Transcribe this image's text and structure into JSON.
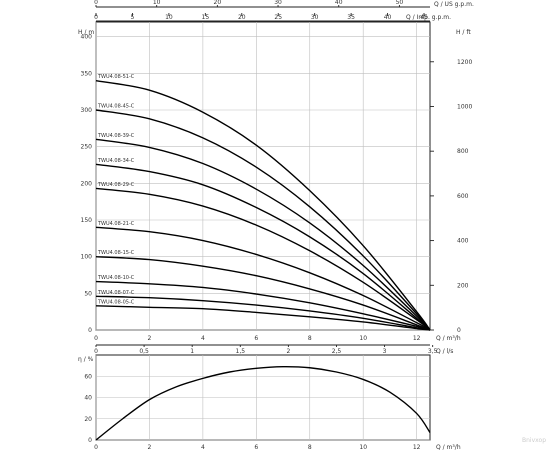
{
  "chart_data": [
    {
      "type": "line",
      "title": "",
      "ylabel_left": "H / m",
      "ylabel_right": "H / ft",
      "xlabel_bottom": "Q / m³/h",
      "xlabel_top_1": "Q / US g.p.m.",
      "xlabel_top_2": "Q / Imp. g.p.m.",
      "xlim": [
        0,
        12.5
      ],
      "ylim": [
        0,
        420
      ],
      "grid": true,
      "x_ticks": [
        "0",
        "2",
        "4",
        "6",
        "8",
        "10",
        "12"
      ],
      "y_ticks": [
        "0",
        "50",
        "100",
        "150",
        "200",
        "250",
        "300",
        "350",
        "400"
      ],
      "y_right_ticks": [
        "0",
        "200",
        "400",
        "600",
        "800",
        "1000",
        "1200"
      ],
      "top_us_ticks": [
        "0",
        "10",
        "20",
        "30",
        "40",
        "50"
      ],
      "top_imp_ticks": [
        "0",
        "5",
        "10",
        "15",
        "20",
        "25",
        "30",
        "35",
        "40",
        "45",
        "50"
      ],
      "series": [
        {
          "name": "TWU4.08-51-C",
          "x": [
            0,
            2,
            4,
            6,
            8,
            10,
            12,
            12.5
          ],
          "y": [
            340,
            327,
            297,
            252,
            190,
            115,
            25,
            0
          ]
        },
        {
          "name": "TWU4.08-45-C",
          "x": [
            0,
            2,
            4,
            6,
            8,
            10,
            12,
            12.5
          ],
          "y": [
            300,
            288,
            262,
            222,
            168,
            101,
            22,
            0
          ]
        },
        {
          "name": "TWU4.08-39-C",
          "x": [
            0,
            2,
            4,
            6,
            8,
            10,
            12,
            12.5
          ],
          "y": [
            260,
            249,
            227,
            192,
            146,
            88,
            19,
            0
          ]
        },
        {
          "name": "TWU4.08-34-C",
          "x": [
            0,
            2,
            4,
            6,
            8,
            10,
            12,
            12.5
          ],
          "y": [
            226,
            216,
            198,
            167,
            127,
            77,
            16,
            0
          ]
        },
        {
          "name": "TWU4.08-29-C",
          "x": [
            0,
            2,
            4,
            6,
            8,
            10,
            12,
            12.5
          ],
          "y": [
            193,
            185,
            169,
            143,
            108,
            65,
            14,
            0
          ]
        },
        {
          "name": "TWU4.08-21-C",
          "x": [
            0,
            2,
            4,
            6,
            8,
            10,
            12,
            12.5
          ],
          "y": [
            140,
            134,
            122,
            103,
            78,
            47,
            10,
            0
          ]
        },
        {
          "name": "TWU4.08-15-C",
          "x": [
            0,
            2,
            4,
            6,
            8,
            10,
            12,
            12.5
          ],
          "y": [
            100,
            96,
            87,
            74,
            56,
            34,
            7,
            0
          ]
        },
        {
          "name": "TWU4.08-10-C",
          "x": [
            0,
            2,
            4,
            6,
            8,
            10,
            12,
            12.5
          ],
          "y": [
            66,
            63,
            58,
            49,
            37,
            22,
            5,
            0
          ]
        },
        {
          "name": "TWU4.08-07-C",
          "x": [
            0,
            2,
            4,
            6,
            8,
            10,
            12,
            12.5
          ],
          "y": [
            46,
            44,
            40,
            34,
            26,
            16,
            3,
            0
          ]
        },
        {
          "name": "TWU4.08-05-C",
          "x": [
            0,
            2,
            4,
            6,
            8,
            10,
            12,
            12.5
          ],
          "y": [
            33,
            31,
            29,
            24,
            18,
            11,
            2,
            0
          ]
        }
      ]
    },
    {
      "type": "line",
      "title": "",
      "ylabel": "η / %",
      "xlabel_bottom": "Q / m³/h",
      "xlabel_top": "Q / l/s",
      "xlim": [
        0,
        12.5
      ],
      "ylim": [
        0,
        80
      ],
      "grid": true,
      "x_ticks": [
        "0",
        "2",
        "4",
        "6",
        "8",
        "10",
        "12"
      ],
      "y_ticks": [
        "0",
        "20",
        "40",
        "60"
      ],
      "top_ls_ticks": [
        "0",
        "0,5",
        "1",
        "1,5",
        "2",
        "2,5",
        "3",
        "3,5"
      ],
      "series": [
        {
          "name": "",
          "x": [
            0,
            1,
            2,
            3,
            4,
            5,
            6,
            7,
            8,
            9,
            10,
            11,
            12,
            12.5
          ],
          "y": [
            0,
            20,
            38,
            50,
            58,
            64,
            67.5,
            69,
            68,
            64,
            57,
            45,
            25,
            7
          ]
        }
      ]
    }
  ],
  "watermark": "Bnivxop"
}
